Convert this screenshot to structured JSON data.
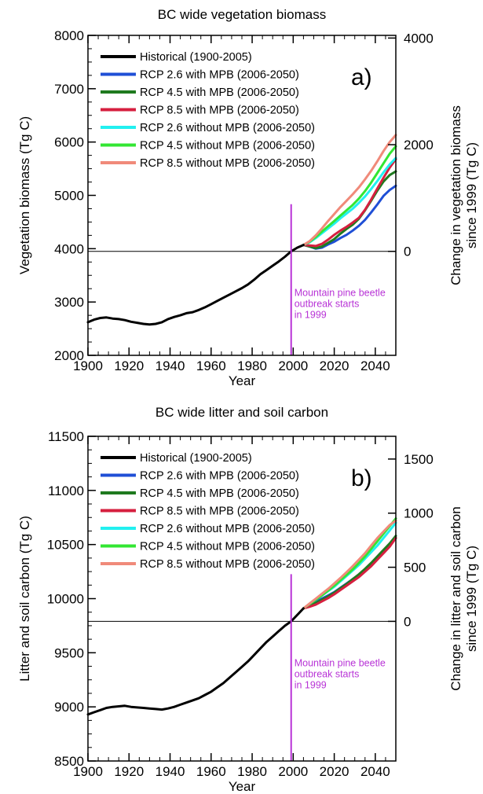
{
  "chart_data": [
    {
      "type": "line",
      "panel_label": "a)",
      "title": "BC wide vegetation biomass",
      "xlabel": "Year",
      "ylabel": "Vegetation biomass (Tg C)",
      "ylabel2_line1": "Change in vegetation biomass",
      "ylabel2_line2": "since 1999 (Tg C)",
      "xlim": [
        1900,
        2050
      ],
      "ylim": [
        2000,
        8000
      ],
      "xticks": [
        "1900",
        "1920",
        "1940",
        "1960",
        "1980",
        "2000",
        "2020",
        "2040"
      ],
      "yticks": [
        "2000",
        "3000",
        "4000",
        "5000",
        "6000",
        "7000",
        "8000"
      ],
      "y2ticks": [
        {
          "label": "0",
          "at": 3950
        },
        {
          "label": "2000",
          "at": 5950
        },
        {
          "label": "4000",
          "at": 7950
        }
      ],
      "reference_line": 3950,
      "annotation_year": 1999,
      "annotation": [
        "Mountain pine beetle",
        "outbreak starts",
        "in 1999"
      ],
      "series": [
        {
          "name": "Historical (1900-2005)",
          "color": "#000000",
          "x": [
            1900,
            1903,
            1906,
            1909,
            1912,
            1915,
            1918,
            1921,
            1924,
            1927,
            1930,
            1933,
            1936,
            1939,
            1942,
            1945,
            1948,
            1951,
            1954,
            1957,
            1960,
            1963,
            1966,
            1969,
            1972,
            1975,
            1978,
            1981,
            1984,
            1987,
            1990,
            1993,
            1996,
            1999,
            2002,
            2005
          ],
          "y": [
            2620,
            2670,
            2700,
            2710,
            2690,
            2680,
            2660,
            2630,
            2610,
            2590,
            2580,
            2590,
            2620,
            2680,
            2720,
            2750,
            2790,
            2810,
            2850,
            2900,
            2960,
            3020,
            3080,
            3140,
            3200,
            3260,
            3330,
            3420,
            3520,
            3600,
            3680,
            3760,
            3850,
            3950,
            4020,
            4070
          ]
        },
        {
          "name": "RCP 2.6 with MPB (2006-2050)",
          "color": "#1f4fd6",
          "x": [
            2005,
            2008,
            2011,
            2014,
            2017,
            2020,
            2023,
            2026,
            2029,
            2032,
            2035,
            2038,
            2041,
            2044,
            2047,
            2050
          ],
          "y": [
            4070,
            4040,
            4000,
            4020,
            4080,
            4130,
            4200,
            4260,
            4340,
            4430,
            4540,
            4680,
            4830,
            4990,
            5100,
            5180
          ]
        },
        {
          "name": "RCP 4.5 with MPB (2006-2050)",
          "color": "#1f7a1f",
          "x": [
            2005,
            2008,
            2011,
            2014,
            2017,
            2020,
            2023,
            2026,
            2029,
            2032,
            2035,
            2038,
            2041,
            2044,
            2047,
            2050
          ],
          "y": [
            4070,
            4040,
            4010,
            4040,
            4110,
            4180,
            4280,
            4370,
            4450,
            4560,
            4720,
            4900,
            5090,
            5260,
            5380,
            5450
          ]
        },
        {
          "name": "RCP 8.5 with MPB (2006-2050)",
          "color": "#d61f3f",
          "x": [
            2005,
            2008,
            2011,
            2014,
            2017,
            2020,
            2023,
            2026,
            2029,
            2032,
            2035,
            2038,
            2041,
            2044,
            2047,
            2050
          ],
          "y": [
            4070,
            4060,
            4050,
            4090,
            4170,
            4260,
            4340,
            4410,
            4490,
            4580,
            4730,
            4920,
            5130,
            5330,
            5520,
            5680
          ]
        },
        {
          "name": "RCP 2.6 without MPB (2006-2050)",
          "color": "#22f0f0",
          "x": [
            2005,
            2008,
            2011,
            2014,
            2017,
            2020,
            2023,
            2026,
            2029,
            2032,
            2035,
            2038,
            2041,
            2044,
            2047,
            2050
          ],
          "y": [
            4070,
            4120,
            4200,
            4290,
            4380,
            4470,
            4570,
            4660,
            4750,
            4860,
            4980,
            5120,
            5270,
            5430,
            5580,
            5700
          ]
        },
        {
          "name": "RCP 4.5 without MPB (2006-2050)",
          "color": "#33e633",
          "x": [
            2005,
            2008,
            2011,
            2014,
            2017,
            2020,
            2023,
            2026,
            2029,
            2032,
            2035,
            2038,
            2041,
            2044,
            2047,
            2050
          ],
          "y": [
            4070,
            4130,
            4220,
            4320,
            4420,
            4520,
            4620,
            4720,
            4820,
            4940,
            5080,
            5240,
            5420,
            5600,
            5780,
            5920
          ]
        },
        {
          "name": "RCP 8.5 without MPB (2006-2050)",
          "color": "#f08a7a",
          "x": [
            2005,
            2008,
            2011,
            2014,
            2017,
            2020,
            2023,
            2026,
            2029,
            2032,
            2035,
            2038,
            2041,
            2044,
            2047,
            2050
          ],
          "y": [
            4070,
            4140,
            4250,
            4380,
            4520,
            4650,
            4780,
            4900,
            5020,
            5150,
            5300,
            5460,
            5640,
            5830,
            6000,
            6130
          ]
        }
      ]
    },
    {
      "type": "line",
      "panel_label": "b)",
      "title": "BC wide litter and soil carbon",
      "xlabel": "Year",
      "ylabel": "Litter and soil carbon (Tg C)",
      "ylabel2_line1": "Change in litter and soil carbon",
      "ylabel2_line2": "since 1999 (Tg C)",
      "xlim": [
        1900,
        2050
      ],
      "ylim": [
        8500,
        11500
      ],
      "xticks": [
        "1900",
        "1920",
        "1940",
        "1960",
        "1980",
        "2000",
        "2020",
        "2040"
      ],
      "yticks": [
        "8500",
        "9000",
        "9500",
        "10000",
        "10500",
        "11000",
        "11500"
      ],
      "y2ticks": [
        {
          "label": "0",
          "at": 9790
        },
        {
          "label": "500",
          "at": 10290
        },
        {
          "label": "1000",
          "at": 10790
        },
        {
          "label": "1500",
          "at": 11290
        }
      ],
      "reference_line": 9790,
      "annotation_year": 1999,
      "annotation": [
        "Mountain pine beetle",
        "outbreak starts",
        "in 1999"
      ],
      "series": [
        {
          "name": "Historical (1900-2005)",
          "color": "#000000",
          "x": [
            1900,
            1903,
            1906,
            1909,
            1912,
            1915,
            1918,
            1921,
            1924,
            1927,
            1930,
            1933,
            1936,
            1939,
            1942,
            1945,
            1948,
            1951,
            1954,
            1957,
            1960,
            1963,
            1966,
            1969,
            1972,
            1975,
            1978,
            1981,
            1984,
            1987,
            1990,
            1993,
            1996,
            1999,
            2002,
            2005
          ],
          "y": [
            8930,
            8950,
            8970,
            8990,
            9000,
            9005,
            9010,
            9000,
            8995,
            8990,
            8985,
            8980,
            8975,
            8985,
            9000,
            9020,
            9040,
            9060,
            9080,
            9110,
            9140,
            9180,
            9220,
            9270,
            9320,
            9370,
            9420,
            9480,
            9540,
            9600,
            9650,
            9700,
            9750,
            9790,
            9850,
            9910
          ]
        },
        {
          "name": "RCP 2.6 with MPB (2006-2050)",
          "color": "#1f4fd6",
          "x": [
            2005,
            2008,
            2011,
            2014,
            2017,
            2020,
            2023,
            2026,
            2029,
            2032,
            2035,
            2038,
            2041,
            2044,
            2047,
            2050
          ],
          "y": [
            9910,
            9940,
            9970,
            10000,
            10030,
            10060,
            10100,
            10140,
            10180,
            10220,
            10270,
            10320,
            10380,
            10440,
            10500,
            10560
          ]
        },
        {
          "name": "RCP 4.5 with MPB (2006-2050)",
          "color": "#1f7a1f",
          "x": [
            2005,
            2008,
            2011,
            2014,
            2017,
            2020,
            2023,
            2026,
            2029,
            2032,
            2035,
            2038,
            2041,
            2044,
            2047,
            2050
          ],
          "y": [
            9910,
            9935,
            9960,
            9990,
            10020,
            10055,
            10095,
            10135,
            10180,
            10225,
            10275,
            10330,
            10390,
            10450,
            10510,
            10580
          ]
        },
        {
          "name": "RCP 8.5 with MPB (2006-2050)",
          "color": "#d61f3f",
          "x": [
            2005,
            2008,
            2011,
            2014,
            2017,
            2020,
            2023,
            2026,
            2029,
            2032,
            2035,
            2038,
            2041,
            2044,
            2047,
            2050
          ],
          "y": [
            9910,
            9925,
            9945,
            9975,
            10005,
            10040,
            10080,
            10120,
            10160,
            10200,
            10250,
            10300,
            10360,
            10420,
            10480,
            10560
          ]
        },
        {
          "name": "RCP 2.6 without MPB (2006-2050)",
          "color": "#22f0f0",
          "x": [
            2005,
            2008,
            2011,
            2014,
            2017,
            2020,
            2023,
            2026,
            2029,
            2032,
            2035,
            2038,
            2041,
            2044,
            2047,
            2050
          ],
          "y": [
            9910,
            9950,
            9990,
            10030,
            10070,
            10110,
            10160,
            10210,
            10260,
            10310,
            10370,
            10430,
            10490,
            10560,
            10630,
            10700
          ]
        },
        {
          "name": "RCP 4.5 without MPB (2006-2050)",
          "color": "#33e633",
          "x": [
            2005,
            2008,
            2011,
            2014,
            2017,
            2020,
            2023,
            2026,
            2029,
            2032,
            2035,
            2038,
            2041,
            2044,
            2047,
            2050
          ],
          "y": [
            9910,
            9950,
            9990,
            10030,
            10075,
            10120,
            10170,
            10220,
            10270,
            10330,
            10390,
            10460,
            10530,
            10600,
            10670,
            10740
          ]
        },
        {
          "name": "RCP 8.5 without MPB (2006-2050)",
          "color": "#f08a7a",
          "x": [
            2005,
            2008,
            2011,
            2014,
            2017,
            2020,
            2023,
            2026,
            2029,
            2032,
            2035,
            2038,
            2041,
            2044,
            2047,
            2050
          ],
          "y": [
            9910,
            9955,
            10000,
            10045,
            10090,
            10140,
            10190,
            10245,
            10300,
            10360,
            10420,
            10490,
            10560,
            10620,
            10680,
            10720
          ]
        }
      ]
    }
  ],
  "colors": {
    "axis": "#000000",
    "annotation": "#b833d6",
    "reference_line": "#000000"
  }
}
